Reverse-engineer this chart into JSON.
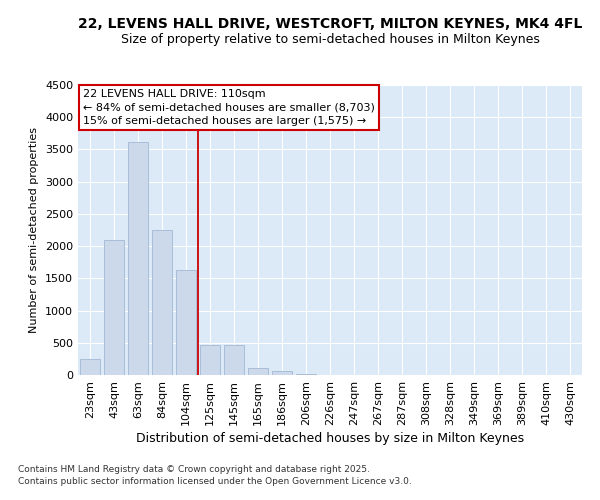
{
  "title1": "22, LEVENS HALL DRIVE, WESTCROFT, MILTON KEYNES, MK4 4FL",
  "title2": "Size of property relative to semi-detached houses in Milton Keynes",
  "xlabel": "Distribution of semi-detached houses by size in Milton Keynes",
  "ylabel": "Number of semi-detached properties",
  "footer1": "Contains HM Land Registry data © Crown copyright and database right 2025.",
  "footer2": "Contains public sector information licensed under the Open Government Licence v3.0.",
  "categories": [
    "23sqm",
    "43sqm",
    "63sqm",
    "84sqm",
    "104sqm",
    "125sqm",
    "145sqm",
    "165sqm",
    "186sqm",
    "206sqm",
    "226sqm",
    "247sqm",
    "267sqm",
    "287sqm",
    "308sqm",
    "328sqm",
    "349sqm",
    "369sqm",
    "389sqm",
    "410sqm",
    "430sqm"
  ],
  "values": [
    250,
    2100,
    3620,
    2250,
    1630,
    460,
    460,
    105,
    55,
    10,
    3,
    1,
    0,
    0,
    0,
    0,
    0,
    0,
    0,
    0,
    0
  ],
  "bar_color": "#ccd9ea",
  "bar_edge_color": "#aabdd8",
  "red_line_x": 4.5,
  "annotation_title": "22 LEVENS HALL DRIVE: 110sqm",
  "annotation_line1": "← 84% of semi-detached houses are smaller (8,703)",
  "annotation_line2": "15% of semi-detached houses are larger (1,575) →",
  "annotation_box_color": "#ffffff",
  "annotation_border_color": "#cc0000",
  "red_line_color": "#cc0000",
  "plot_bg_color": "#dce9f7",
  "ylim": [
    0,
    4500
  ],
  "yticks": [
    0,
    500,
    1000,
    1500,
    2000,
    2500,
    3000,
    3500,
    4000,
    4500
  ],
  "title1_fontsize": 10,
  "title2_fontsize": 9,
  "xlabel_fontsize": 9,
  "ylabel_fontsize": 8,
  "tick_fontsize": 8,
  "annot_fontsize": 8,
  "footer_fontsize": 6.5
}
